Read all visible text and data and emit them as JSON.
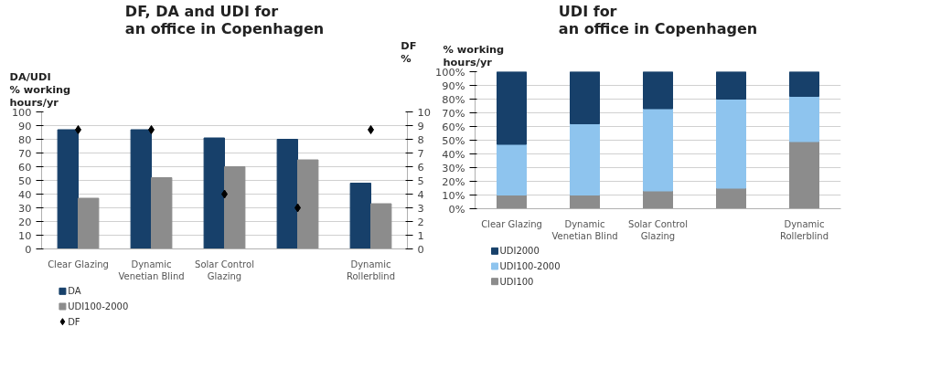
{
  "chart_data": [
    {
      "type": "bar",
      "title": "DF, DA and UDI for\nan office in Copenhagen",
      "ylabel": "DA/UDI\n% working\nhours/yr",
      "y2label": "DF\n%",
      "categories": [
        "Clear Glazing",
        "Dynamic Venetian Blind",
        "Solar Control Glazing",
        null,
        "Dynamic Rollerblind"
      ],
      "ylim": [
        0,
        100
      ],
      "yticks": [
        0,
        10,
        20,
        30,
        40,
        50,
        60,
        70,
        80,
        90,
        100
      ],
      "y2lim": [
        0,
        10
      ],
      "y2ticks": [
        0,
        1,
        2,
        3,
        4,
        5,
        6,
        7,
        8,
        9,
        10
      ],
      "grid": "y",
      "legend": "bottom",
      "series": [
        {
          "name": "DA",
          "color": "#17406a",
          "values": [
            87,
            87,
            81,
            80,
            48
          ]
        },
        {
          "name": "UDI100-2000",
          "color": "#8c8c8c",
          "values": [
            37,
            52,
            60,
            65,
            33
          ]
        },
        {
          "name": "DF",
          "type": "scatter",
          "axis": "y2",
          "marker": "diamond",
          "color": "#000000",
          "values": [
            8.7,
            8.7,
            4,
            3,
            8.7
          ]
        }
      ]
    },
    {
      "type": "bar",
      "stacked": true,
      "title": "UDI for\nan office in Copenhagen",
      "ylabel": "% working\nhours/yr",
      "categories": [
        "Clear Glazing",
        "Dynamic Venetian Blind",
        "Solar Control Glazing",
        null,
        "Dynamic Rollerblind"
      ],
      "ylim": [
        0,
        100
      ],
      "yticks": [
        {
          "value": 0,
          "label": "0%"
        },
        {
          "value": 10,
          "label": "10%"
        },
        {
          "value": 20,
          "label": "20%"
        },
        {
          "value": 30,
          "label": "30%"
        },
        {
          "value": 40,
          "label": "40%"
        },
        {
          "value": 50,
          "label": "50%"
        },
        {
          "value": 60,
          "label": "60%"
        },
        {
          "value": 70,
          "label": "70%"
        },
        {
          "value": 80,
          "label": "80%"
        },
        {
          "value": 90,
          "label": "90%"
        },
        {
          "value": 100,
          "label": "100%"
        }
      ],
      "grid": "y",
      "legend": "bottom",
      "series": [
        {
          "name": "UDI100",
          "color": "#8c8c8c",
          "values": [
            10,
            10,
            13,
            15,
            49
          ]
        },
        {
          "name": "UDI100-2000",
          "color": "#8ec4ee",
          "values": [
            37,
            52,
            60,
            65,
            33
          ]
        },
        {
          "name": "UDI2000",
          "color": "#17406a",
          "values": [
            53,
            38,
            27,
            20,
            18
          ]
        }
      ]
    }
  ]
}
